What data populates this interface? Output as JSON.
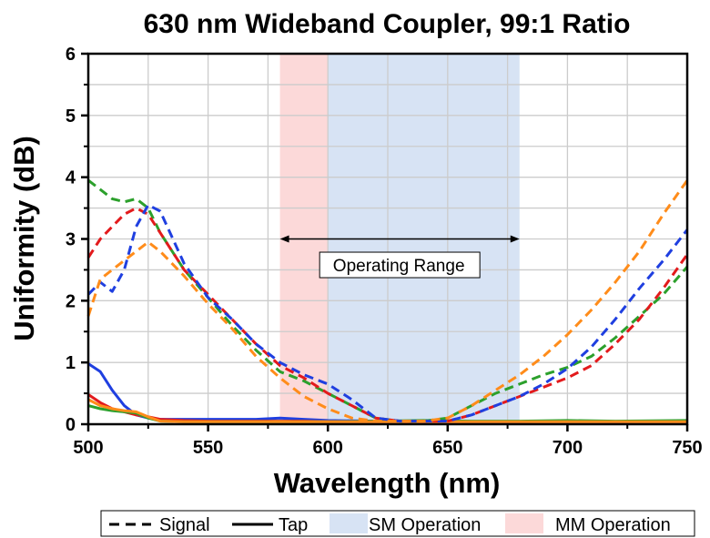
{
  "chart_data": {
    "type": "line",
    "title": "630 nm Wideband Coupler, 99:1 Ratio",
    "xlabel": "Wavelength (nm)",
    "ylabel": "Uniformity (dB)",
    "xlim": [
      500,
      750
    ],
    "ylim": [
      0,
      6
    ],
    "x_ticks": [
      500,
      550,
      600,
      650,
      700,
      750
    ],
    "y_ticks": [
      0,
      1,
      2,
      3,
      4,
      5,
      6
    ],
    "grid": true,
    "regions": [
      {
        "name": "MM Operation",
        "x_start": 580,
        "x_end": 600,
        "color": "#fcd9d9"
      },
      {
        "name": "SM Operation",
        "x_start": 600,
        "x_end": 680,
        "color": "#d7e3f4"
      }
    ],
    "annotation": {
      "text": "Operating Range",
      "x_start": 580,
      "x_end": 680,
      "arrow_y": 3.0,
      "label_x": 630,
      "label_y": 2.55
    },
    "legend": {
      "position": "bottom",
      "items": [
        {
          "label": "Signal",
          "kind": "dashed-line"
        },
        {
          "label": "Tap",
          "kind": "solid-line"
        },
        {
          "label": "SM Operation",
          "kind": "patch",
          "color": "#d7e3f4"
        },
        {
          "label": "MM Operation",
          "kind": "patch",
          "color": "#fcd9d9"
        }
      ]
    },
    "series": [
      {
        "color": "#2ca02c",
        "style": "dashed",
        "x": [
          500,
          505,
          510,
          515,
          520,
          525,
          530,
          540,
          550,
          560,
          570,
          580,
          590,
          600,
          610,
          620,
          630,
          640,
          650,
          660,
          670,
          680,
          690,
          700,
          710,
          720,
          730,
          740,
          750
        ],
        "y": [
          3.95,
          3.8,
          3.65,
          3.6,
          3.65,
          3.5,
          3.1,
          2.5,
          2.05,
          1.6,
          1.2,
          0.85,
          0.7,
          0.5,
          0.3,
          0.1,
          0.05,
          0.05,
          0.1,
          0.3,
          0.5,
          0.65,
          0.8,
          0.92,
          1.1,
          1.4,
          1.75,
          2.1,
          2.55
        ]
      },
      {
        "color": "#e31a1c",
        "style": "dashed",
        "x": [
          500,
          505,
          510,
          515,
          520,
          525,
          530,
          540,
          550,
          560,
          570,
          580,
          590,
          600,
          610,
          620,
          630,
          640,
          650,
          660,
          670,
          680,
          690,
          700,
          710,
          720,
          730,
          740,
          750
        ],
        "y": [
          2.7,
          3.0,
          3.2,
          3.4,
          3.5,
          3.4,
          3.1,
          2.5,
          2.1,
          1.7,
          1.3,
          0.95,
          0.75,
          0.5,
          0.3,
          0.1,
          0.05,
          0.05,
          0.05,
          0.15,
          0.3,
          0.45,
          0.6,
          0.75,
          0.95,
          1.3,
          1.7,
          2.2,
          2.75
        ]
      },
      {
        "color": "#1f3fe0",
        "style": "dashed",
        "x": [
          500,
          505,
          510,
          515,
          520,
          525,
          530,
          540,
          550,
          560,
          570,
          580,
          590,
          600,
          610,
          620,
          630,
          640,
          650,
          660,
          670,
          680,
          690,
          700,
          710,
          720,
          730,
          740,
          750
        ],
        "y": [
          2.1,
          2.3,
          2.15,
          2.5,
          3.2,
          3.55,
          3.45,
          2.6,
          2.05,
          1.7,
          1.3,
          1.0,
          0.8,
          0.65,
          0.4,
          0.1,
          0.05,
          0.05,
          0.05,
          0.15,
          0.3,
          0.45,
          0.65,
          0.9,
          1.25,
          1.7,
          2.2,
          2.65,
          3.15
        ]
      },
      {
        "color": "#ff8c1a",
        "style": "dashed",
        "x": [
          500,
          505,
          510,
          515,
          520,
          525,
          530,
          540,
          550,
          560,
          570,
          580,
          590,
          600,
          610,
          620,
          630,
          640,
          650,
          660,
          670,
          680,
          690,
          700,
          710,
          720,
          730,
          740,
          750
        ],
        "y": [
          1.75,
          2.35,
          2.5,
          2.65,
          2.8,
          2.95,
          2.8,
          2.4,
          1.95,
          1.55,
          1.1,
          0.75,
          0.45,
          0.25,
          0.1,
          0.05,
          0.05,
          0.05,
          0.1,
          0.3,
          0.55,
          0.8,
          1.1,
          1.45,
          1.85,
          2.3,
          2.8,
          3.4,
          3.95
        ]
      },
      {
        "color": "#1f3fe0",
        "style": "solid",
        "x": [
          500,
          505,
          510,
          515,
          520,
          525,
          530,
          540,
          550,
          560,
          570,
          580,
          590,
          600,
          620,
          640,
          660,
          680,
          700,
          720,
          750
        ],
        "y": [
          0.98,
          0.85,
          0.55,
          0.3,
          0.15,
          0.1,
          0.08,
          0.08,
          0.08,
          0.08,
          0.08,
          0.1,
          0.08,
          0.06,
          0.05,
          0.05,
          0.04,
          0.04,
          0.05,
          0.04,
          0.05
        ]
      },
      {
        "color": "#e31a1c",
        "style": "solid",
        "x": [
          500,
          505,
          510,
          515,
          520,
          525,
          530,
          540,
          550,
          560,
          570,
          580,
          590,
          600,
          620,
          640,
          660,
          680,
          700,
          720,
          750
        ],
        "y": [
          0.48,
          0.35,
          0.25,
          0.2,
          0.15,
          0.12,
          0.08,
          0.06,
          0.05,
          0.05,
          0.05,
          0.05,
          0.05,
          0.04,
          0.04,
          0.04,
          0.04,
          0.04,
          0.04,
          0.04,
          0.04
        ]
      },
      {
        "color": "#2ca02c",
        "style": "solid",
        "x": [
          500,
          505,
          510,
          515,
          520,
          525,
          530,
          540,
          550,
          560,
          570,
          580,
          590,
          600,
          620,
          640,
          660,
          680,
          700,
          720,
          750
        ],
        "y": [
          0.3,
          0.25,
          0.22,
          0.2,
          0.18,
          0.1,
          0.05,
          0.04,
          0.04,
          0.04,
          0.04,
          0.04,
          0.04,
          0.04,
          0.05,
          0.06,
          0.05,
          0.05,
          0.06,
          0.05,
          0.06
        ]
      },
      {
        "color": "#ff8c1a",
        "style": "solid",
        "x": [
          500,
          505,
          510,
          515,
          520,
          525,
          530,
          540,
          550,
          560,
          570,
          580,
          590,
          600,
          620,
          640,
          660,
          680,
          700,
          720,
          750
        ],
        "y": [
          0.4,
          0.3,
          0.25,
          0.22,
          0.2,
          0.12,
          0.05,
          0.04,
          0.04,
          0.04,
          0.04,
          0.04,
          0.04,
          0.04,
          0.04,
          0.04,
          0.04,
          0.04,
          0.04,
          0.04,
          0.04
        ]
      }
    ]
  }
}
